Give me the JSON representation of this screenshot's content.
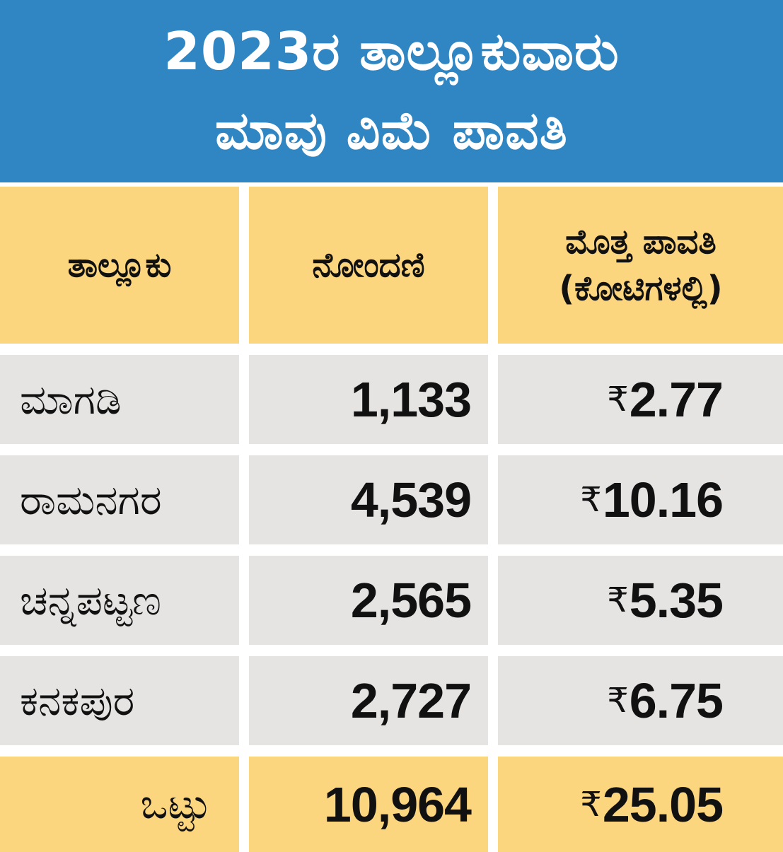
{
  "title": {
    "line1": "2023ರ ತಾಲ್ಲೂಕುವಾರು",
    "line2": "ಮಾವು ವಿಮೆ ಪಾವತಿ"
  },
  "headers": {
    "taluk": "ತಾಲ್ಲೂಕು",
    "registration": "ನೋಂದಣಿ",
    "total_payment_line1": "ಮೊತ್ತ ಪಾವತಿ",
    "total_payment_line2": "(ಕೋಟಿಗಳಲ್ಲಿ)"
  },
  "rows": [
    {
      "taluk": "ಮಾಗಡಿ",
      "registration": "1,133",
      "currency": "₹",
      "amount": "2.77"
    },
    {
      "taluk": "ರಾಮನಗರ",
      "registration": "4,539",
      "currency": "₹",
      "amount": "10.16"
    },
    {
      "taluk": "ಚನ್ನಪಟ್ಟಣ",
      "registration": "2,565",
      "currency": "₹",
      "amount": "5.35"
    },
    {
      "taluk": "ಕನಕಪುರ",
      "registration": "2,727",
      "currency": "₹",
      "amount": "6.75"
    }
  ],
  "total": {
    "label": "ಒಟ್ಟು",
    "registration": "10,964",
    "currency": "₹",
    "amount": "25.05"
  },
  "colors": {
    "header_bg": "#2f86c2",
    "highlight": "#fcd57f",
    "row_bg": "#e6e4e3"
  }
}
